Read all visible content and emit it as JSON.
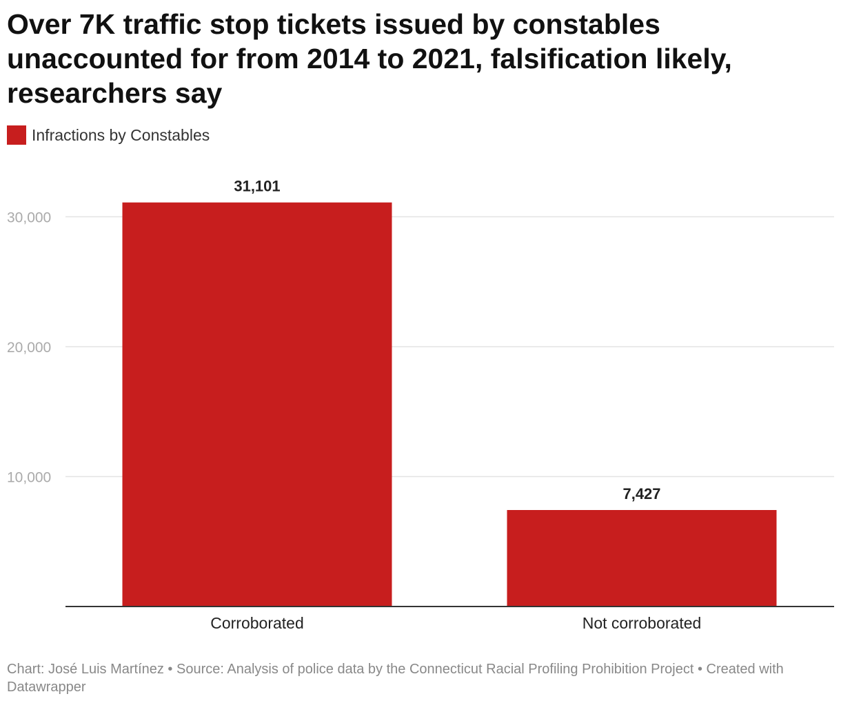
{
  "chart_data": {
    "type": "bar",
    "title": "Over 7K traffic stop tickets issued by constables unaccounted for from 2014 to 2021, falsification likely, researchers say",
    "legend": [
      {
        "label": "Infractions by Constables",
        "color": "#c71e1e"
      }
    ],
    "categories": [
      "Corroborated",
      "Not corroborated"
    ],
    "series": [
      {
        "name": "Infractions by Constables",
        "values": [
          31101,
          7427
        ],
        "labels": [
          "31,101",
          "7,427"
        ]
      }
    ],
    "yticks": [
      10000,
      20000,
      30000
    ],
    "ytick_labels": [
      "10,000",
      "20,000",
      "30,000"
    ],
    "ylim": [
      0,
      32000
    ],
    "xlabel": "",
    "ylabel": "",
    "grid": true,
    "legend_position": "top-left"
  },
  "footer": {
    "text": "Chart: José Luis Martínez • Source: Analysis of police data by the Connecticut Racial Profiling Prohibition Project • Created with Datawrapper"
  }
}
